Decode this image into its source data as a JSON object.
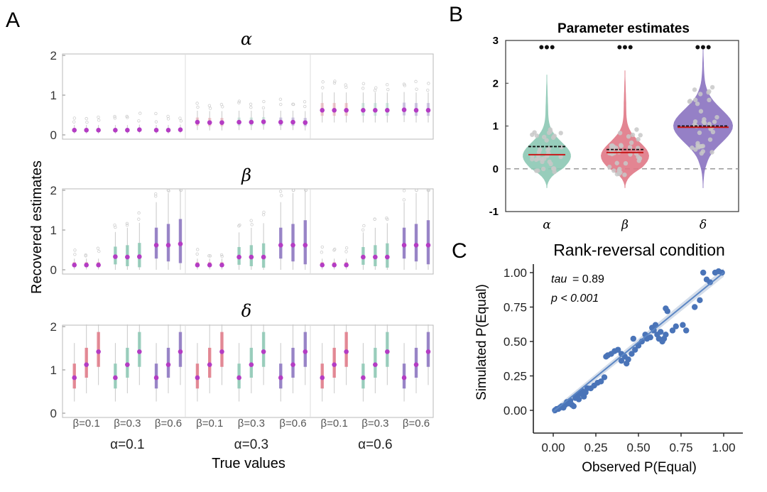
{
  "panel_labels": [
    "A",
    "B",
    "C"
  ],
  "panel_a": {
    "ylabel": "Recovered estimates",
    "xlabel": "True values",
    "beta_group_labels": [
      "β=0.1",
      "β=0.3",
      "β=0.6"
    ],
    "alpha_group_labels": [
      "α=0.1",
      "α=0.3",
      "α=0.6"
    ]
  },
  "panel_b": {
    "title": "Parameter estimates",
    "significance_marker": "•••"
  },
  "panel_c": {
    "title": "Rank-reversal condition",
    "annotation_tau_label": "tau",
    "annotation_tau_value": "=  0.89",
    "annotation_p": "p < 0.001"
  },
  "colors": {
    "teal": "#8cc8b4",
    "red": "#e07886",
    "purple": "#8a72c0",
    "magenta": "#b43cc4",
    "blue": "#4a74b8",
    "grey_dots": "#c8c8c8"
  },
  "chart_data": [
    {
      "id": "A-alpha",
      "type": "box",
      "title": "α",
      "ylim": [
        0,
        2
      ],
      "yticks": [
        0,
        1,
        2
      ],
      "alpha_true": [
        0.1,
        0.3,
        0.6
      ],
      "beta_true": [
        0.1,
        0.3,
        0.6
      ],
      "delta_true": [
        0.8,
        1.1,
        1.4
      ],
      "medians": [
        [
          [
            0.12,
            0.12,
            0.12
          ],
          [
            0.12,
            0.12,
            0.13
          ],
          [
            0.12,
            0.12,
            0.13
          ]
        ],
        [
          [
            0.32,
            0.31,
            0.31
          ],
          [
            0.32,
            0.32,
            0.33
          ],
          [
            0.32,
            0.32,
            0.31
          ]
        ],
        [
          [
            0.62,
            0.62,
            0.62
          ],
          [
            0.62,
            0.62,
            0.62
          ],
          [
            0.63,
            0.62,
            0.62
          ]
        ]
      ]
    },
    {
      "id": "A-beta",
      "type": "box",
      "title": "β",
      "ylim": [
        0,
        2
      ],
      "yticks": [
        0,
        1,
        2
      ],
      "medians": [
        [
          [
            0.12,
            0.12,
            0.12
          ],
          [
            0.33,
            0.32,
            0.33
          ],
          [
            0.62,
            0.62,
            0.65
          ]
        ],
        [
          [
            0.12,
            0.12,
            0.12
          ],
          [
            0.32,
            0.32,
            0.32
          ],
          [
            0.62,
            0.62,
            0.62
          ]
        ],
        [
          [
            0.12,
            0.12,
            0.12
          ],
          [
            0.32,
            0.32,
            0.32
          ],
          [
            0.62,
            0.62,
            0.62
          ]
        ]
      ]
    },
    {
      "id": "A-delta",
      "type": "box",
      "title": "δ",
      "ylim": [
        0,
        2
      ],
      "yticks": [
        0,
        1,
        2
      ],
      "medians": [
        [
          [
            0.82,
            1.12,
            1.42
          ],
          [
            0.82,
            1.12,
            1.42
          ],
          [
            0.82,
            1.12,
            1.42
          ]
        ],
        [
          [
            0.82,
            1.12,
            1.42
          ],
          [
            0.82,
            1.12,
            1.42
          ],
          [
            0.82,
            1.12,
            1.42
          ]
        ],
        [
          [
            0.82,
            1.12,
            1.42
          ],
          [
            0.82,
            1.12,
            1.42
          ],
          [
            0.82,
            1.12,
            1.42
          ]
        ]
      ]
    },
    {
      "id": "B",
      "type": "violin",
      "title": "Parameter estimates",
      "categories": [
        "α",
        "β",
        "δ"
      ],
      "ylim": [
        -1,
        3
      ],
      "yticks": [
        -1,
        0,
        1,
        2,
        3
      ],
      "means": [
        0.52,
        0.45,
        1.0
      ],
      "medians": [
        0.33,
        0.38,
        0.97
      ],
      "reference_line": 0
    },
    {
      "id": "C",
      "type": "scatter",
      "title": "Rank-reversal condition",
      "xlabel": "Observed P(Equal)",
      "ylabel": "Simulated P(Equal)",
      "xlim": [
        0,
        1
      ],
      "ylim": [
        0,
        1
      ],
      "xticks": [
        "0.00",
        "0.25",
        "0.50",
        "0.75",
        "1.00"
      ],
      "yticks": [
        "0.00",
        "0.25",
        "0.50",
        "0.75",
        "1.00"
      ],
      "points": [
        [
          0.01,
          0.0
        ],
        [
          0.02,
          0.01
        ],
        [
          0.03,
          0.01
        ],
        [
          0.04,
          0.02
        ],
        [
          0.05,
          0.03
        ],
        [
          0.06,
          0.02
        ],
        [
          0.07,
          0.04
        ],
        [
          0.08,
          0.06
        ],
        [
          0.09,
          0.05
        ],
        [
          0.1,
          0.07
        ],
        [
          0.11,
          0.04
        ],
        [
          0.12,
          0.03
        ],
        [
          0.13,
          0.09
        ],
        [
          0.14,
          0.11
        ],
        [
          0.15,
          0.08
        ],
        [
          0.16,
          0.12
        ],
        [
          0.17,
          0.14
        ],
        [
          0.18,
          0.1
        ],
        [
          0.19,
          0.13
        ],
        [
          0.2,
          0.16
        ],
        [
          0.22,
          0.16
        ],
        [
          0.24,
          0.18
        ],
        [
          0.26,
          0.2
        ],
        [
          0.28,
          0.21
        ],
        [
          0.3,
          0.24
        ],
        [
          0.31,
          0.39
        ],
        [
          0.32,
          0.4
        ],
        [
          0.34,
          0.41
        ],
        [
          0.36,
          0.43
        ],
        [
          0.38,
          0.44
        ],
        [
          0.4,
          0.41
        ],
        [
          0.4,
          0.36
        ],
        [
          0.42,
          0.39
        ],
        [
          0.43,
          0.34
        ],
        [
          0.44,
          0.37
        ],
        [
          0.46,
          0.41
        ],
        [
          0.47,
          0.52
        ],
        [
          0.48,
          0.44
        ],
        [
          0.5,
          0.47
        ],
        [
          0.52,
          0.5
        ],
        [
          0.54,
          0.55
        ],
        [
          0.55,
          0.52
        ],
        [
          0.57,
          0.53
        ],
        [
          0.58,
          0.6
        ],
        [
          0.59,
          0.58
        ],
        [
          0.6,
          0.62
        ],
        [
          0.61,
          0.55
        ],
        [
          0.62,
          0.52
        ],
        [
          0.63,
          0.57
        ],
        [
          0.64,
          0.5
        ],
        [
          0.65,
          0.52
        ],
        [
          0.66,
          0.55
        ],
        [
          0.66,
          0.74
        ],
        [
          0.67,
          0.72
        ],
        [
          0.7,
          0.58
        ],
        [
          0.72,
          0.61
        ],
        [
          0.76,
          0.62
        ],
        [
          0.78,
          0.58
        ],
        [
          0.83,
          0.75
        ],
        [
          0.86,
          0.8
        ],
        [
          0.88,
          1.0
        ],
        [
          0.9,
          0.95
        ],
        [
          0.92,
          0.93
        ],
        [
          0.95,
          1.0
        ],
        [
          0.97,
          1.01
        ],
        [
          0.99,
          1.0
        ]
      ],
      "fit": {
        "x": [
          0,
          1
        ],
        "y": [
          -0.01,
          1.0
        ]
      }
    }
  ]
}
